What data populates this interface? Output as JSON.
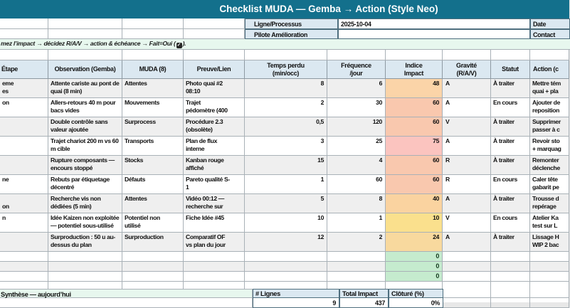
{
  "title": "Checklist MUDA — Gemba → Action (Style Neo)",
  "meta": {
    "ligne_label": "Ligne/Processus",
    "ligne_value": "2025-10-04",
    "date_label": "Date",
    "pilote_label": "Pilote Amélioration",
    "pilote_value": "",
    "contact_label": "Contact",
    "contact_value": ""
  },
  "instruction": {
    "text_before": "mez l’impact →  décidez R/A/V →  action & échéance →  Fait=Oui (",
    "check": "✓",
    "text_after": ")."
  },
  "columns": [
    "Étape",
    "Observation (Gemba)",
    "MUDA (8)",
    "Preuve/Lien",
    "Temps perdu\n(min/occ)",
    "Fréquence\n/jour",
    "Indice\nImpact",
    "Gravité\n(R/A/V)",
    "Statut",
    "Action (c"
  ],
  "rows": [
    {
      "etape": "eme\nes",
      "observation": "Attente cariste au pont de\nquai (8 min)",
      "muda": "Attentes",
      "preuve": "Photo quai #2\n08:10",
      "temps": "8",
      "freq": "6",
      "impact": "48",
      "impact_color": "#FBD4A8",
      "gravite": "A",
      "statut": "À traiter",
      "action": "Mettre tém\nquai + pla"
    },
    {
      "etape": "on",
      "observation": "Allers-retours 40 m pour\nbacs vides",
      "muda": "Mouvements",
      "preuve": "Trajet\npédomètre (400",
      "temps": "2",
      "freq": "30",
      "impact": "60",
      "impact_color": "#F9C8AE",
      "gravite": "A",
      "statut": "En cours",
      "action": "Ajouter de\nreposition"
    },
    {
      "etape": "",
      "observation": "Double contrôle sans\nvaleur ajoutée",
      "muda": "Surprocess",
      "preuve": "Procédure 2.3\n(obsolète)",
      "temps": "0,5",
      "freq": "120",
      "impact": "60",
      "impact_color": "#F9C8AE",
      "gravite": "V",
      "statut": "À traiter",
      "action": "Supprimer\npasser à c"
    },
    {
      "etape": "",
      "observation": "Trajet chariot 200 m vs 60\nm cible",
      "muda": "Transports",
      "preuve": "Plan de flux\ninterne",
      "temps": "3",
      "freq": "25",
      "impact": "75",
      "impact_color": "#FBC4BF",
      "gravite": "A",
      "statut": "À traiter",
      "action": "Revoir sto\n+ marquag"
    },
    {
      "etape": "",
      "observation": "Rupture composants —\nencours stoppé",
      "muda": "Stocks",
      "preuve": "Kanban rouge\naffiché",
      "temps": "15",
      "freq": "4",
      "impact": "60",
      "impact_color": "#F9C8AE",
      "gravite": "R",
      "statut": "À traiter",
      "action": "Remonter\ndéclenche"
    },
    {
      "etape": "ne",
      "observation": "Rebuts par étiquetage\ndécentré",
      "muda": "Défauts",
      "preuve": "Pareto qualité S-\n1",
      "temps": "1",
      "freq": "60",
      "impact": "60",
      "impact_color": "#F9C8AE",
      "gravite": "R",
      "statut": "En cours",
      "action": "Caler tête\ngabarit pe"
    },
    {
      "etape": "\non",
      "observation": "Recherche vis non\ndédiées (5 min)",
      "muda": "Attentes",
      "preuve": "Vidéo 00:12 —\nrecherche sur",
      "temps": "5",
      "freq": "8",
      "impact": "40",
      "impact_color": "#FAD3A0",
      "gravite": "A",
      "statut": "À traiter",
      "action": "Trousse d\nrepérage"
    },
    {
      "etape": "n",
      "observation": "Idée Kaizen non exploitée\n— potentiel sous-utilisé",
      "muda": "Potentiel non\nutilisé",
      "preuve": "Fiche Idée #45",
      "temps": "10",
      "freq": "1",
      "impact": "10",
      "impact_color": "#FAE08D",
      "gravite": "V",
      "statut": "En cours",
      "action": "Atelier Ka\ntest sur L"
    },
    {
      "etape": "",
      "observation": "Surproduction : 50 u au-\ndessus du plan",
      "muda": "Surproduction",
      "preuve": "Comparatif OF\nvs plan du jour",
      "temps": "12",
      "freq": "2",
      "impact": "24",
      "impact_color": "#F8D99E",
      "gravite": "A",
      "statut": "À traiter",
      "action": "Lissage H\nWIP 2 bac"
    }
  ],
  "zero_rows": [
    {
      "impact": "0"
    },
    {
      "impact": "0"
    },
    {
      "impact": "0"
    }
  ],
  "synthese": {
    "label": "Synthèse — aujourd’hui",
    "col_lignes": "# Lignes",
    "col_total": "Total Impact",
    "col_cloture": "Clôturé (%)",
    "val_lignes": "9",
    "val_total": "437",
    "val_cloture": "0%"
  },
  "colors": {
    "banner": "#13708C",
    "headerbg": "#DBE8F1",
    "mint": "#E7F7EE",
    "stripe": "#EFEFEF",
    "grid": "#A9B1B7",
    "dark": "#4E6E7E",
    "green": "#C5EBCE"
  }
}
